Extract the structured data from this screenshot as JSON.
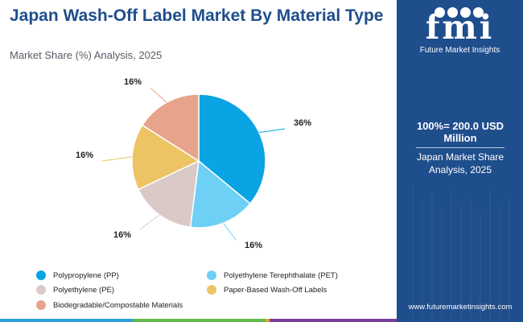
{
  "header": {
    "title": "Japan Wash-Off Label Market By Material Type",
    "subtitle": "Market Share (%) Analysis, 2025"
  },
  "chart_data": {
    "type": "pie",
    "title": "Japan Wash-Off Label Market By Material Type",
    "subtitle": "Market Share (%) Analysis, 2025",
    "categories": [
      "Polypropylene (PP)",
      "Polyethylene Terephthalate (PET)",
      "Polyethylene (PE)",
      "Paper-Based Wash-Off Labels",
      "Biodegradable/Compostable Materials"
    ],
    "values": [
      36,
      16,
      16,
      16,
      16
    ],
    "labels": [
      "36%",
      "16%",
      "16%",
      "16%",
      "16%"
    ],
    "colors": [
      "#0aa3e3",
      "#6fd0f5",
      "#d9cac7",
      "#edc463",
      "#e8a48b"
    ],
    "legend_position": "bottom"
  },
  "sidebar": {
    "logo_text": "fmi",
    "company": "Future Market Insights",
    "total": "100%= 200.0 USD Million",
    "market": "Japan Market Share Analysis, 2025",
    "website": "www.futuremarketinsights.com",
    "colors": {
      "background": "#1f4e8c"
    }
  },
  "bottom_bar": {
    "colors": [
      "#2f9fd8",
      "#63b84a",
      "#e8a030",
      "#7b3f98"
    ]
  }
}
